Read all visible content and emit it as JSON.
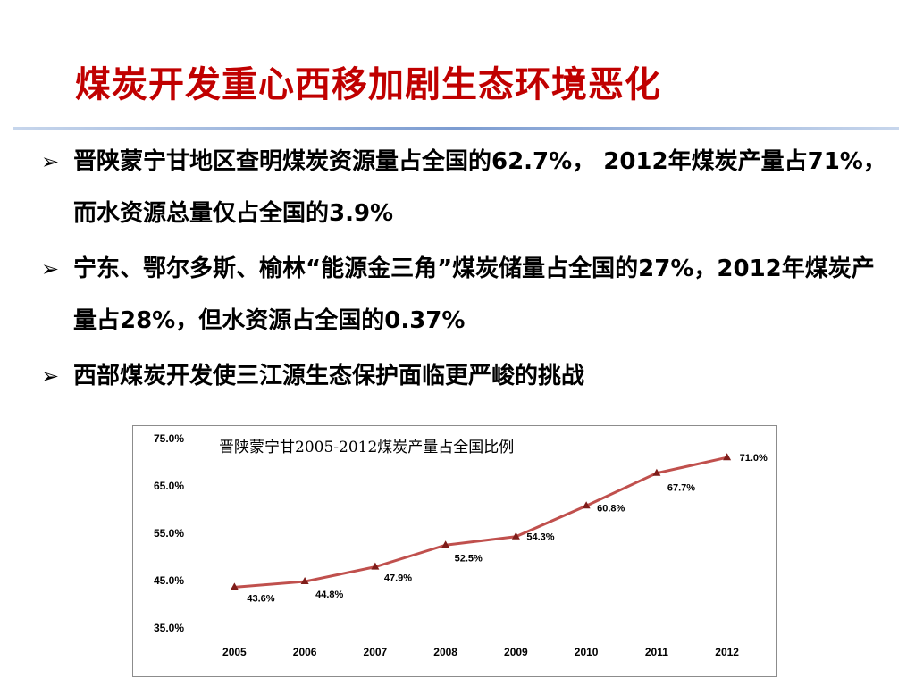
{
  "slide": {
    "title": "煤炭开发重心西移加剧生态环境恶化",
    "bullet_marker": "➢",
    "bullets": [
      "晋陕蒙宁甘地区查明煤炭资源量占全国的62.7%， 2012年煤炭产量占71%，而水资源总量仅占全国的3.9%",
      "宁东、鄂尔多斯、榆林“能源金三角”煤炭储量占全国的27%，2012年煤炭产量占28%，但水资源占全国的0.37%",
      "西部煤炭开发使三江源生态保护面临更严峻的挑战"
    ]
  },
  "chart_data": {
    "type": "line",
    "title": "晋陕蒙宁甘2005-2012煤炭产量占全国比例",
    "xlabel": "",
    "ylabel": "",
    "categories": [
      "2005",
      "2006",
      "2007",
      "2008",
      "2009",
      "2010",
      "2011",
      "2012"
    ],
    "values": [
      43.6,
      44.8,
      47.9,
      52.5,
      54.3,
      60.8,
      67.7,
      71.0
    ],
    "data_labels": [
      "43.6%",
      "44.8%",
      "47.9%",
      "52.5%",
      "54.3%",
      "60.8%",
      "67.7%",
      "71.0%"
    ],
    "ylim": [
      35.0,
      75.0
    ],
    "yticks": [
      "35.0%",
      "45.0%",
      "55.0%",
      "65.0%",
      "75.0%"
    ],
    "grid": false,
    "legend": "none",
    "line_color": "#c0504d",
    "marker_color": "#7f1d1a"
  }
}
